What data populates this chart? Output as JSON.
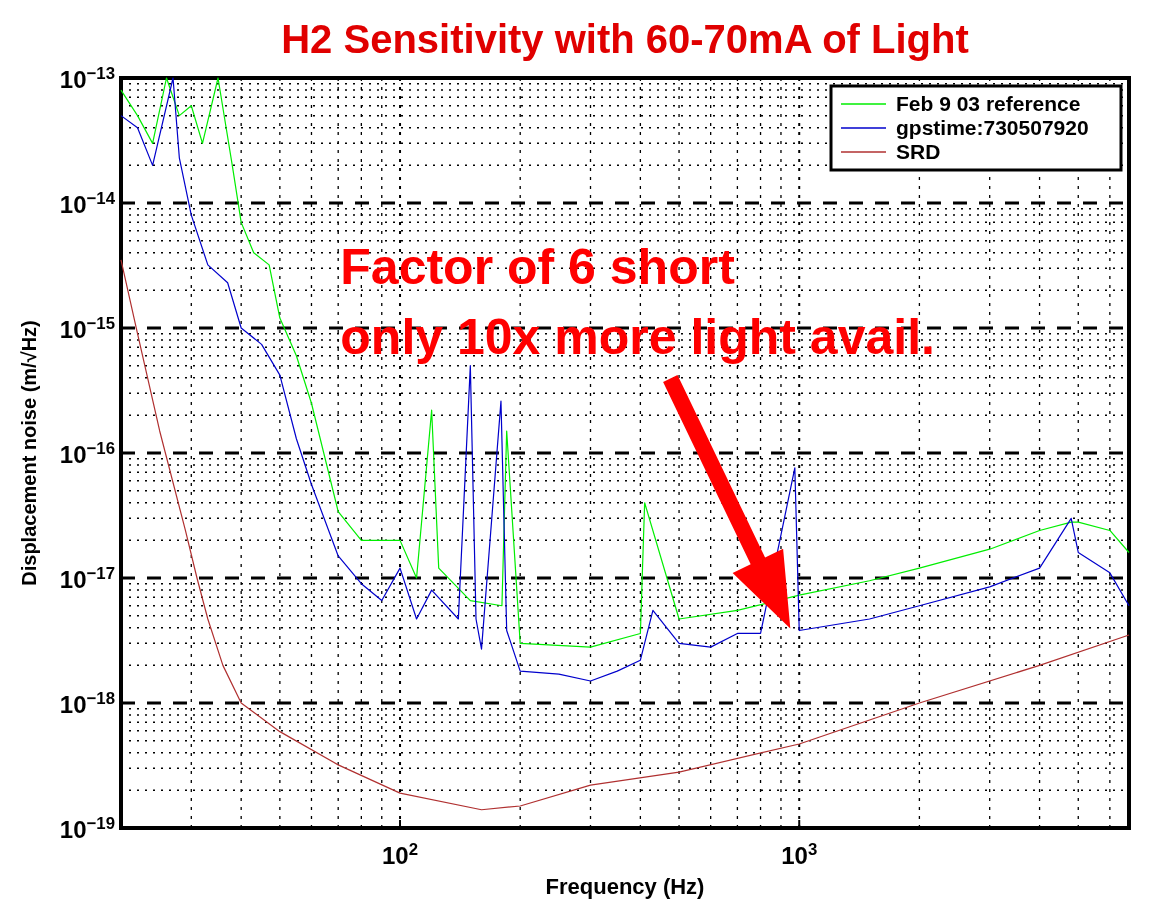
{
  "chart_data": {
    "type": "line",
    "title": "H2 Sensitivity with 60-70mA of Light",
    "xlabel": "Frequency (Hz)",
    "ylabel": "Displacement noise (m/√Hz)",
    "log": "xy",
    "grid": true,
    "legend": "top right",
    "xlim": [
      20,
      6700
    ],
    "ylim": [
      1e-19,
      1e-13
    ],
    "xticks": [
      {
        "value": 100,
        "label": "10$^{2}$"
      },
      {
        "value": 1000,
        "label": "10$^{3}$"
      }
    ],
    "yticks": [
      {
        "value": 1e-19,
        "label": "10$^{−19}$"
      },
      {
        "value": 1e-18,
        "label": "10$^{−18}$"
      },
      {
        "value": 1e-17,
        "label": "10$^{−17}$"
      },
      {
        "value": 1e-16,
        "label": "10$^{−16}$"
      },
      {
        "value": 1e-15,
        "label": "10$^{−15}$"
      },
      {
        "value": 1e-14,
        "label": "10$^{−14}$"
      },
      {
        "value": 1e-13,
        "label": "10$^{−13}$"
      }
    ],
    "annotations": [
      "Factor of 6 short",
      "only 10x more light avail."
    ],
    "series": [
      {
        "name": "Feb 9 03 reference",
        "color": "#00ee00",
        "x": [
          20,
          22,
          24,
          26,
          28,
          30,
          32,
          35,
          38,
          40,
          43,
          47,
          50,
          55,
          60,
          70,
          80,
          100,
          110,
          120,
          125,
          150,
          180,
          185,
          200,
          300,
          400,
          410,
          500,
          700,
          1000,
          1500,
          2000,
          3000,
          4000,
          4800,
          5000,
          6000,
          6700
        ],
        "values": [
          8e-14,
          5e-14,
          3e-14,
          1e-13,
          5e-14,
          6e-14,
          3e-14,
          1e-13,
          2e-14,
          7e-15,
          4e-15,
          3.2e-15,
          1.2e-15,
          6e-16,
          2.5e-16,
          3.4e-17,
          2e-17,
          2e-17,
          1e-17,
          2.2e-16,
          1.2e-17,
          6.6e-18,
          6e-18,
          1.5e-16,
          3e-18,
          2.8e-18,
          3.6e-18,
          4e-17,
          4.7e-18,
          5.5e-18,
          7.3e-18,
          9.5e-18,
          1.2e-17,
          1.7e-17,
          2.4e-17,
          2.8e-17,
          2.8e-17,
          2.4e-17,
          1.6e-17
        ]
      },
      {
        "name": "gpstime:730507920",
        "color": "#0000cc",
        "x": [
          20,
          22,
          24,
          27,
          28,
          30,
          33,
          37,
          40,
          45,
          50,
          55,
          60,
          70,
          80,
          90,
          100,
          110,
          120,
          140,
          150,
          155,
          160,
          179,
          185,
          200,
          250,
          300,
          350,
          400,
          430,
          500,
          600,
          700,
          800,
          975,
          1000,
          1500,
          2000,
          3000,
          4000,
          4800,
          5000,
          6000,
          6700
        ],
        "values": [
          5e-14,
          4e-14,
          2e-14,
          1e-13,
          2.3e-14,
          8e-15,
          3.2e-15,
          2.3e-15,
          1e-15,
          7.4e-16,
          4.2e-16,
          1.3e-16,
          5.6e-17,
          1.5e-17,
          9e-18,
          6.6e-18,
          1.2e-17,
          4.7e-18,
          8e-18,
          4.7e-18,
          5e-16,
          4.7e-18,
          2.7e-18,
          2.6e-16,
          3.8e-18,
          1.8e-18,
          1.7e-18,
          1.5e-18,
          1.8e-18,
          2.2e-18,
          5.5e-18,
          3e-18,
          2.8e-18,
          3.6e-18,
          3.6e-18,
          7.6e-17,
          3.8e-18,
          4.7e-18,
          6e-18,
          8.5e-18,
          1.2e-17,
          3e-17,
          1.6e-17,
          1.1e-17,
          6e-18
        ]
      },
      {
        "name": "SRD",
        "color": "#b03030",
        "x": [
          20,
          22,
          25,
          29,
          31,
          33,
          36,
          40,
          50,
          70,
          100,
          160,
          200,
          300,
          500,
          1000,
          2000,
          4000,
          6700
        ],
        "values": [
          3.5e-15,
          9e-16,
          1.5e-16,
          2.4e-17,
          1e-17,
          4.7e-18,
          2e-18,
          1e-18,
          5.9e-19,
          3.2e-19,
          1.9e-19,
          1.4e-19,
          1.5e-19,
          2.2e-19,
          2.8e-19,
          4.7e-19,
          1e-18,
          2e-18,
          3.5e-18
        ]
      }
    ]
  }
}
